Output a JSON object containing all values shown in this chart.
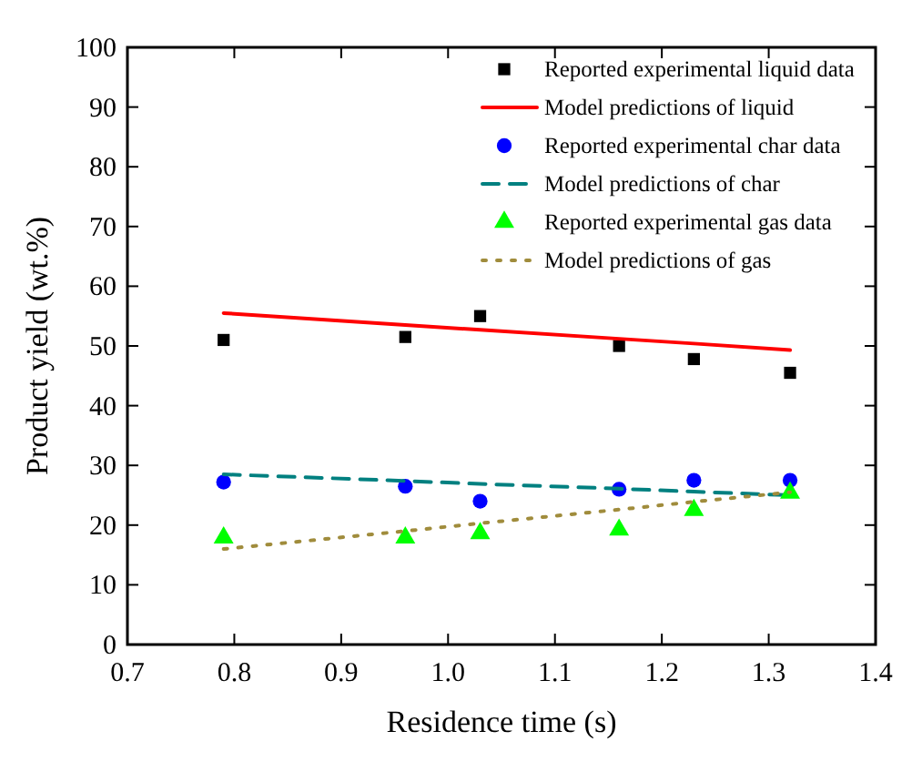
{
  "chart_data": {
    "type": "scatter",
    "xlabel": "Residence time (s)",
    "ylabel": "Product yield (wt.%)",
    "xlim": [
      0.7,
      1.4
    ],
    "xticks": [
      {
        "value": 0.7,
        "label": "0.7"
      },
      {
        "value": 0.8,
        "label": "0.8"
      },
      {
        "value": 0.9,
        "label": "0.9"
      },
      {
        "value": 1.0,
        "label": "1.0"
      },
      {
        "value": 1.1,
        "label": "1.1"
      },
      {
        "value": 1.2,
        "label": "1.2"
      },
      {
        "value": 1.3,
        "label": "1.3"
      },
      {
        "value": 1.4,
        "label": "1.4"
      }
    ],
    "ylim": [
      0,
      100
    ],
    "yticks": [
      0,
      10,
      20,
      30,
      40,
      50,
      60,
      70,
      80,
      90,
      100
    ],
    "grid": false,
    "legend": "top right",
    "x": [
      0.79,
      0.96,
      1.03,
      1.16,
      1.23,
      1.32
    ],
    "series": [
      {
        "name": "Reported experimental liquid data",
        "type": "scatter",
        "marker": "square",
        "color": "#000000",
        "values": [
          51,
          51.5,
          55,
          50,
          47.8,
          45.5
        ]
      },
      {
        "name": "Model predictions of liquid",
        "type": "line",
        "line_style": "solid",
        "color": "#ff0000",
        "values": [
          55.5,
          53.5,
          52.7,
          51.2,
          50.4,
          49.3
        ]
      },
      {
        "name": "Reported experimental char data",
        "type": "scatter",
        "marker": "circle",
        "color": "#0000ff",
        "values": [
          27.2,
          26.5,
          24,
          26,
          27.5,
          27.5
        ]
      },
      {
        "name": "Model predictions of char",
        "type": "line",
        "line_style": "dashed",
        "color": "#008080",
        "values": [
          28.5,
          27.4,
          26.9,
          26.1,
          25.6,
          25.0
        ]
      },
      {
        "name": "Reported experimental gas data",
        "type": "scatter",
        "marker": "triangle",
        "color": "#00ff00",
        "values": [
          17.9,
          17.9,
          18.6,
          19.2,
          22.5,
          25.4
        ]
      },
      {
        "name": "Model predictions of gas",
        "type": "line",
        "line_style": "dotted",
        "color": "#a08c3c",
        "values": [
          16.0,
          19.0,
          20.3,
          22.6,
          23.9,
          25.5
        ]
      }
    ]
  }
}
